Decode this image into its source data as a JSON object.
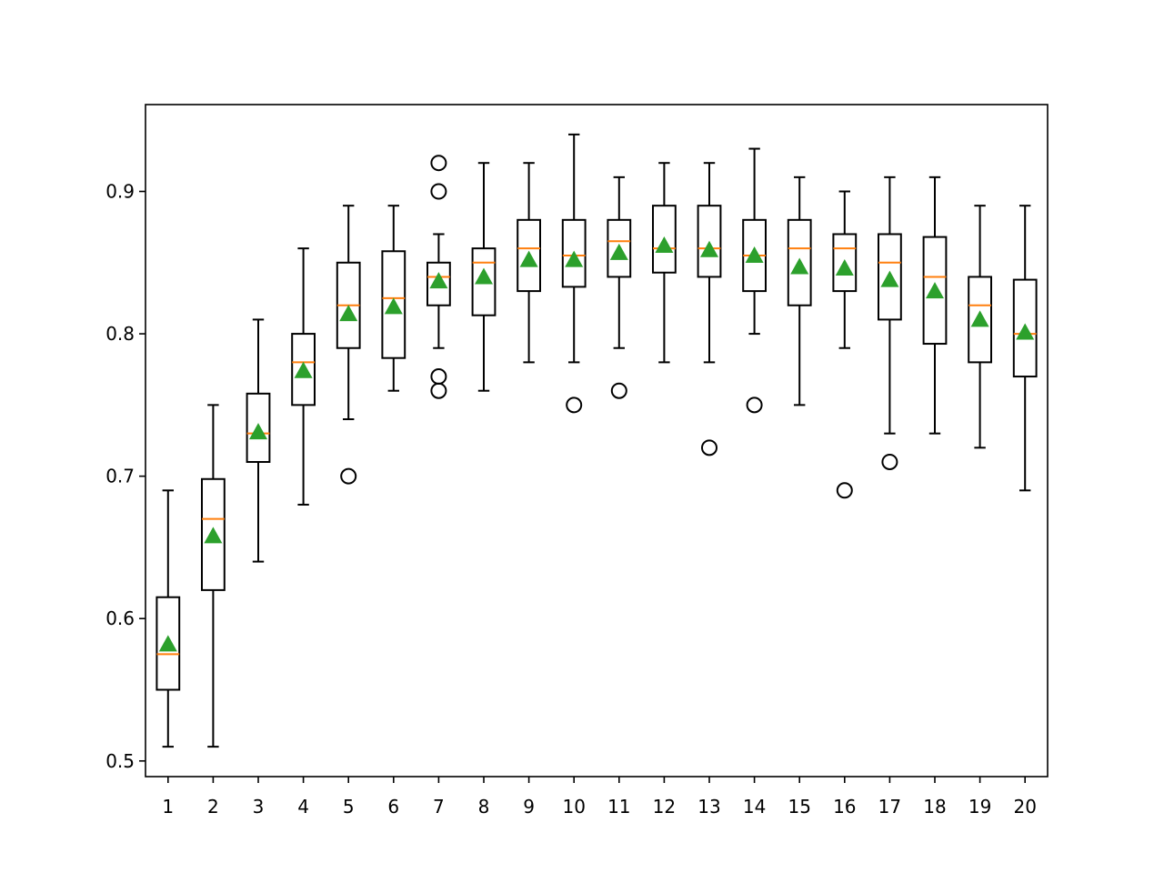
{
  "chart_data": {
    "type": "box",
    "title": "",
    "xlabel": "",
    "ylabel": "",
    "categories": [
      "1",
      "2",
      "3",
      "4",
      "5",
      "6",
      "7",
      "8",
      "9",
      "10",
      "11",
      "12",
      "13",
      "14",
      "15",
      "16",
      "17",
      "18",
      "19",
      "20"
    ],
    "ylim": [
      0.489,
      0.961
    ],
    "yticks": [
      0.5,
      0.6,
      0.7,
      0.8,
      0.9
    ],
    "ytick_labels": [
      "0.5",
      "0.6",
      "0.7",
      "0.8",
      "0.9"
    ],
    "grid": false,
    "legend": "none",
    "colors": {
      "box": "#000000",
      "median": "#ff7f0e",
      "mean": "#2ca02c",
      "flier": "#000000"
    },
    "boxes": [
      {
        "whislo": 0.51,
        "q1": 0.55,
        "med": 0.575,
        "q3": 0.615,
        "whishi": 0.69,
        "mean": 0.582,
        "fliers": []
      },
      {
        "whislo": 0.51,
        "q1": 0.62,
        "med": 0.67,
        "q3": 0.698,
        "whishi": 0.75,
        "mean": 0.658,
        "fliers": []
      },
      {
        "whislo": 0.64,
        "q1": 0.71,
        "med": 0.73,
        "q3": 0.758,
        "whishi": 0.81,
        "mean": 0.731,
        "fliers": []
      },
      {
        "whislo": 0.68,
        "q1": 0.75,
        "med": 0.78,
        "q3": 0.8,
        "whishi": 0.86,
        "mean": 0.774,
        "fliers": []
      },
      {
        "whislo": 0.74,
        "q1": 0.79,
        "med": 0.82,
        "q3": 0.85,
        "whishi": 0.89,
        "mean": 0.814,
        "fliers": [
          0.7
        ]
      },
      {
        "whislo": 0.76,
        "q1": 0.783,
        "med": 0.825,
        "q3": 0.858,
        "whishi": 0.89,
        "mean": 0.819,
        "fliers": []
      },
      {
        "whislo": 0.79,
        "q1": 0.82,
        "med": 0.84,
        "q3": 0.85,
        "whishi": 0.87,
        "mean": 0.837,
        "fliers": [
          0.92,
          0.9,
          0.77,
          0.76
        ]
      },
      {
        "whislo": 0.76,
        "q1": 0.813,
        "med": 0.85,
        "q3": 0.86,
        "whishi": 0.92,
        "mean": 0.84,
        "fliers": []
      },
      {
        "whislo": 0.78,
        "q1": 0.83,
        "med": 0.86,
        "q3": 0.88,
        "whishi": 0.92,
        "mean": 0.852,
        "fliers": []
      },
      {
        "whislo": 0.78,
        "q1": 0.833,
        "med": 0.855,
        "q3": 0.88,
        "whishi": 0.94,
        "mean": 0.852,
        "fliers": [
          0.75
        ]
      },
      {
        "whislo": 0.79,
        "q1": 0.84,
        "med": 0.865,
        "q3": 0.88,
        "whishi": 0.91,
        "mean": 0.857,
        "fliers": [
          0.76
        ]
      },
      {
        "whislo": 0.78,
        "q1": 0.843,
        "med": 0.86,
        "q3": 0.89,
        "whishi": 0.92,
        "mean": 0.862,
        "fliers": []
      },
      {
        "whislo": 0.78,
        "q1": 0.84,
        "med": 0.86,
        "q3": 0.89,
        "whishi": 0.92,
        "mean": 0.859,
        "fliers": [
          0.72
        ]
      },
      {
        "whislo": 0.8,
        "q1": 0.83,
        "med": 0.855,
        "q3": 0.88,
        "whishi": 0.93,
        "mean": 0.855,
        "fliers": [
          0.75
        ]
      },
      {
        "whislo": 0.75,
        "q1": 0.82,
        "med": 0.86,
        "q3": 0.88,
        "whishi": 0.91,
        "mean": 0.847,
        "fliers": []
      },
      {
        "whislo": 0.79,
        "q1": 0.83,
        "med": 0.86,
        "q3": 0.87,
        "whishi": 0.9,
        "mean": 0.846,
        "fliers": [
          0.69
        ]
      },
      {
        "whislo": 0.73,
        "q1": 0.81,
        "med": 0.85,
        "q3": 0.87,
        "whishi": 0.91,
        "mean": 0.838,
        "fliers": [
          0.71
        ]
      },
      {
        "whislo": 0.73,
        "q1": 0.793,
        "med": 0.84,
        "q3": 0.868,
        "whishi": 0.91,
        "mean": 0.83,
        "fliers": []
      },
      {
        "whislo": 0.72,
        "q1": 0.78,
        "med": 0.82,
        "q3": 0.84,
        "whishi": 0.89,
        "mean": 0.81,
        "fliers": []
      },
      {
        "whislo": 0.69,
        "q1": 0.77,
        "med": 0.8,
        "q3": 0.838,
        "whishi": 0.89,
        "mean": 0.801,
        "fliers": []
      }
    ]
  }
}
